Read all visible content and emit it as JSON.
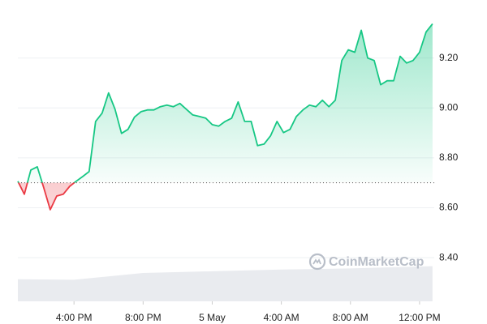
{
  "chart_data": {
    "type": "line",
    "x": [
      12.75,
      13.125,
      13.5,
      13.875,
      14.25,
      14.625,
      15,
      15.375,
      15.75,
      16.125,
      16.5,
      16.875,
      17.25,
      17.625,
      18,
      18.375,
      18.75,
      19.125,
      19.5,
      19.875,
      20.25,
      20.625,
      21,
      21.375,
      21.75,
      22.125,
      22.5,
      22.875,
      23.25,
      23.625,
      24,
      24.375,
      24.75,
      25.125,
      25.5,
      25.875,
      26.25,
      26.625,
      27,
      27.375,
      27.75,
      28.125,
      28.5,
      28.875,
      29.25,
      29.625,
      30,
      30.375,
      30.75,
      31.125,
      31.5,
      31.875,
      32.25,
      32.625,
      33,
      33.375,
      33.75,
      34.125,
      34.5,
      34.875,
      35.25,
      35.625,
      36,
      36.375,
      36.75
    ],
    "series": [
      {
        "values": [
          8.706,
          8.654,
          8.751,
          8.764,
          8.68,
          8.592,
          8.647,
          8.654,
          8.686,
          8.706,
          8.725,
          8.745,
          8.946,
          8.979,
          9.06,
          8.995,
          8.898,
          8.914,
          8.963,
          8.985,
          8.992,
          8.992,
          9.005,
          9.011,
          9.005,
          9.018,
          8.995,
          8.972,
          8.966,
          8.959,
          8.933,
          8.927,
          8.946,
          8.959,
          9.024,
          8.946,
          8.946,
          8.849,
          8.855,
          8.888,
          8.946,
          8.901,
          8.914,
          8.966,
          8.992,
          9.011,
          9.005,
          9.031,
          9.005,
          9.031,
          9.19,
          9.233,
          9.223,
          9.311,
          9.2,
          9.19,
          9.093,
          9.109,
          9.109,
          9.207,
          9.18,
          9.19,
          9.223,
          9.304,
          9.337
        ],
        "color": "#16c784",
        "down_color": "#ea3943"
      }
    ],
    "baseline": 8.7,
    "volume": {
      "x": [
        12.75,
        16,
        20,
        24,
        28,
        32,
        36.75
      ],
      "values": [
        39,
        38,
        50,
        53,
        56,
        58,
        62
      ],
      "color": "#e9ebef",
      "axis": "y2"
    },
    "y2lim": [
      0,
      100
    ],
    "xlim": [
      12.75,
      36.85
    ],
    "xticks": [
      {
        "value": 16,
        "label": "4:00 PM"
      },
      {
        "value": 20,
        "label": "8:00 PM"
      },
      {
        "value": 24,
        "label": "5 May"
      },
      {
        "value": 28,
        "label": "4:00 AM"
      },
      {
        "value": 32,
        "label": "8:00 AM"
      },
      {
        "value": 36,
        "label": "12:00 PM"
      }
    ],
    "ylim": [
      8.225,
      9.4
    ],
    "yticks": [
      {
        "value": 8.4,
        "label": "8.40"
      },
      {
        "value": 8.6,
        "label": "8.60"
      },
      {
        "value": 8.8,
        "label": "8.80"
      },
      {
        "value": 9.0,
        "label": "9.00"
      },
      {
        "value": 9.2,
        "label": "9.20"
      }
    ],
    "grid": true,
    "watermark": "CoinMarketCap"
  }
}
